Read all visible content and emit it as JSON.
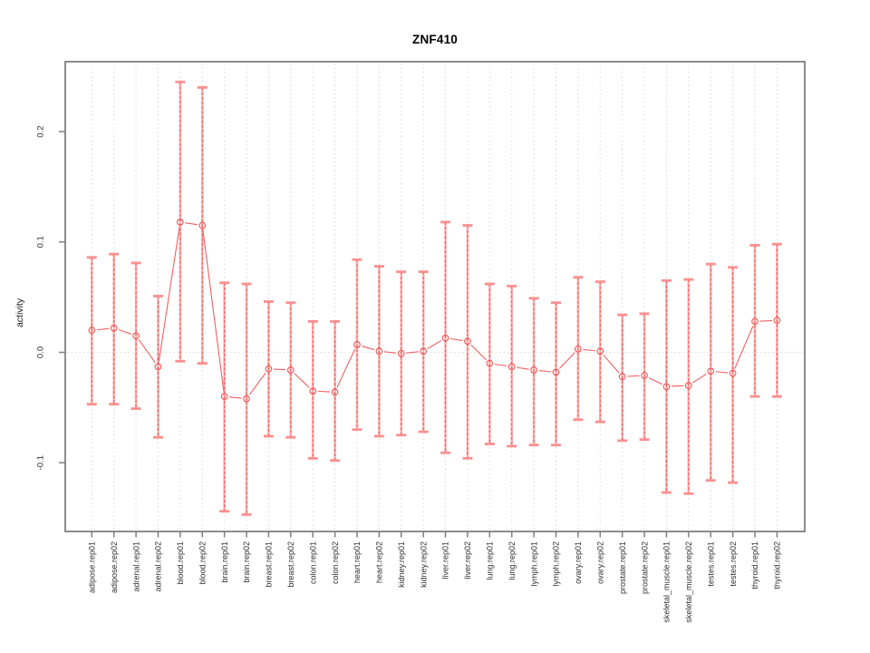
{
  "chart_data": {
    "type": "line",
    "title": "ZNF410",
    "ylabel": "activity",
    "xlabel": "",
    "ylim": [
      -0.162,
      0.263
    ],
    "yticks": [
      0.2,
      0.1,
      0.0,
      -0.1
    ],
    "ytick_labels": [
      "0.2",
      "0.1",
      "0.0",
      "-0.1"
    ],
    "grid": "vertical-dotted-per-category",
    "zero_line": true,
    "legend": "none",
    "categories": [
      "adipose.rep01",
      "adipose.rep02",
      "adrenal.rep01",
      "adrenal.rep02",
      "blood.rep01",
      "blood.rep02",
      "brain.rep01",
      "brain.rep02",
      "breast.rep01",
      "breast.rep02",
      "colon.rep01",
      "colon.rep02",
      "heart.rep01",
      "heart.rep02",
      "kidney.rep01",
      "kidney.rep02",
      "liver.rep01",
      "liver.rep02",
      "lung.rep01",
      "lung.rep02",
      "lymph.rep01",
      "lymph.rep02",
      "ovary.rep01",
      "ovary.rep02",
      "prostate.rep01",
      "prostate.rep02",
      "skeletal_muscle.rep01",
      "skeletal_muscle.rep02",
      "testes.rep01",
      "testes.rep02",
      "thyroid.rep01",
      "thyroid.rep02"
    ],
    "series": [
      {
        "name": "activity",
        "values": [
          0.02,
          0.022,
          0.015,
          -0.013,
          0.118,
          0.115,
          -0.04,
          -0.042,
          -0.015,
          -0.016,
          -0.035,
          -0.036,
          0.007,
          0.001,
          -0.001,
          0.001,
          0.013,
          0.01,
          -0.01,
          -0.013,
          -0.016,
          -0.018,
          0.003,
          0.001,
          -0.022,
          -0.021,
          -0.031,
          -0.03,
          -0.017,
          -0.019,
          0.028,
          0.029
        ],
        "err_high": [
          0.086,
          0.089,
          0.081,
          0.051,
          0.245,
          0.24,
          0.063,
          0.062,
          0.046,
          0.045,
          0.028,
          0.028,
          0.084,
          0.078,
          0.073,
          0.073,
          0.118,
          0.115,
          0.062,
          0.06,
          0.049,
          0.045,
          0.068,
          0.064,
          0.034,
          0.035,
          0.065,
          0.066,
          0.08,
          0.077,
          0.097,
          0.098
        ],
        "err_low": [
          -0.047,
          -0.047,
          -0.051,
          -0.077,
          -0.008,
          -0.01,
          -0.144,
          -0.147,
          -0.076,
          -0.077,
          -0.096,
          -0.098,
          -0.07,
          -0.076,
          -0.075,
          -0.072,
          -0.091,
          -0.096,
          -0.083,
          -0.085,
          -0.084,
          -0.084,
          -0.061,
          -0.063,
          -0.08,
          -0.079,
          -0.127,
          -0.128,
          -0.116,
          -0.118,
          -0.04,
          -0.04
        ]
      }
    ],
    "colors": {
      "point_stroke": "#ef5252",
      "segment_line": "#ef6060",
      "errorbar_pale": "#ffb2b2",
      "errorbar_cap": "#fb8f8f",
      "errorbar_dash": "#e94f4f",
      "gridline": "#d8d8d8",
      "zero_line": "#dcdcdc",
      "axis_frame": "#7f7f7f",
      "tick_text": "#303030",
      "title_text": "#000000"
    }
  }
}
